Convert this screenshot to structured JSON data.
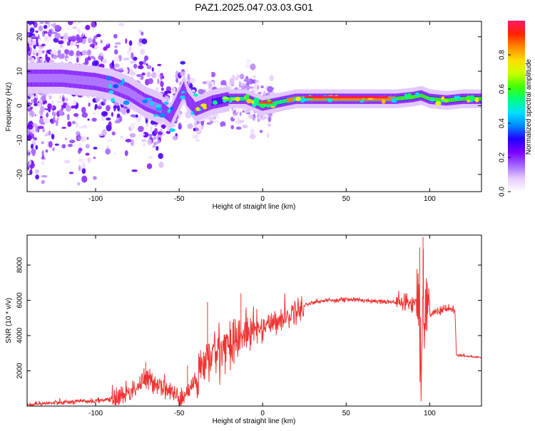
{
  "title": "PAZ1.2025.047.03.03.G01",
  "chart_data": [
    {
      "type": "heatmap",
      "xlabel": "Height of straight line (km)",
      "ylabel": "Frequency (Hz)",
      "xlim": [
        -141,
        131
      ],
      "ylim": [
        -25,
        24.5
      ],
      "xticks": [
        -100,
        -50,
        0,
        50,
        100
      ],
      "yticks": [
        -20,
        -10,
        0,
        10,
        20
      ],
      "ridge": {
        "x": [
          -141,
          -120,
          -100,
          -90,
          -80,
          -70,
          -60,
          -55,
          -50,
          -47,
          -45,
          -40,
          -35,
          -30,
          -20,
          -10,
          -5,
          0,
          5,
          10,
          20,
          30,
          40,
          50,
          60,
          70,
          80,
          90,
          95,
          100,
          110,
          120,
          131
        ],
        "y": [
          8,
          8,
          7,
          6,
          4,
          1,
          -1,
          -3,
          2,
          5,
          2,
          -1,
          0,
          1,
          2,
          2,
          1,
          0,
          0.5,
          1,
          2,
          2,
          2,
          2,
          2,
          2,
          2,
          2.5,
          3,
          2,
          1.5,
          2,
          2
        ]
      },
      "colorbar": {
        "label": "Normalized spectral amplitude",
        "range": [
          0,
          1
        ],
        "ticks": [
          0.0,
          0.2,
          0.4,
          0.6,
          0.8
        ],
        "colors": [
          "#ffffff",
          "#e6ccff",
          "#a366ff",
          "#7a00ff",
          "#2000ff",
          "#0088ff",
          "#00e0ff",
          "#00ff80",
          "#44ff00",
          "#ccff00",
          "#ffdd00",
          "#ff8800",
          "#ff2200",
          "#ff1a66"
        ]
      }
    },
    {
      "type": "line",
      "xlabel": "Height of straight line (km)",
      "ylabel": "SNR (10 * v/v)",
      "xlim": [
        -141,
        131
      ],
      "ylim": [
        0,
        9700
      ],
      "xticks": [
        -100,
        -50,
        0,
        50,
        100
      ],
      "yticks": [
        2000,
        4000,
        6000,
        8000
      ],
      "color": "#ee3333",
      "series": [
        {
          "x": [
            -141,
            -130,
            -120,
            -110,
            -100,
            -90,
            -85,
            -80,
            -75,
            -70,
            -65,
            -60,
            -55,
            -50,
            -45,
            -40,
            -35,
            -30,
            -25,
            -20,
            -15,
            -10,
            -5,
            0,
            5,
            10,
            15,
            20,
            25,
            30,
            40,
            50,
            60,
            70,
            80,
            85,
            90,
            93,
            95,
            96,
            97,
            98,
            100,
            105,
            110,
            115,
            116,
            120,
            125,
            131
          ],
          "y": [
            100,
            150,
            200,
            250,
            300,
            400,
            600,
            800,
            1100,
            1500,
            1400,
            1200,
            800,
            400,
            700,
            1500,
            2400,
            2900,
            3300,
            3600,
            3900,
            4100,
            4300,
            4500,
            4700,
            4900,
            5100,
            5400,
            5700,
            5900,
            6000,
            6050,
            6000,
            5950,
            5900,
            5850,
            5800,
            6500,
            1200,
            7400,
            4500,
            6000,
            5200,
            5400,
            5500,
            5500,
            2900,
            2850,
            2800,
            2750
          ]
        }
      ],
      "spikes": [
        {
          "x": 96,
          "y": 9600
        },
        {
          "x": 94,
          "y": 9000
        },
        {
          "x": -13,
          "y": 6400
        },
        {
          "x": -33,
          "y": 5900
        },
        {
          "x": -70,
          "y": 2500
        },
        {
          "x": -45,
          "y": 2300
        }
      ]
    }
  ]
}
